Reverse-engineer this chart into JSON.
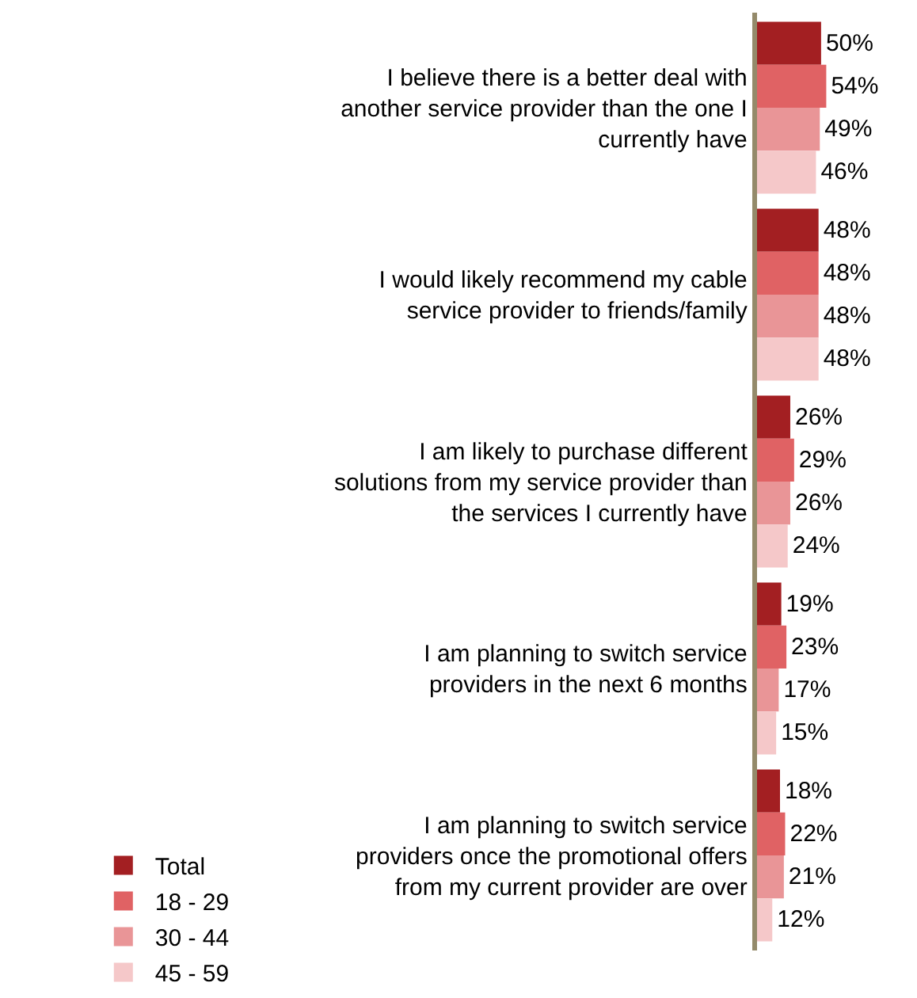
{
  "chart_data": {
    "type": "bar",
    "orientation": "horizontal",
    "categories": [
      "I believe there is a better deal with another service provider than the one I currently have",
      "I would likely recommend my cable service provider to friends/family",
      "I am likely to purchase different solutions from my service provider than the services I currently have",
      "I am planning to switch service providers in the next 6 months",
      "I am planning to switch service providers once the promotional offers from my current provider are over"
    ],
    "series": [
      {
        "name": "Total",
        "color": "#a31f22",
        "values": [
          50,
          48,
          26,
          19,
          18
        ],
        "value_labels": [
          "50%",
          "48%",
          "26%",
          "19%",
          "18%"
        ]
      },
      {
        "name": "18 - 29",
        "color": "#e06264",
        "values": [
          54,
          48,
          29,
          23,
          22
        ],
        "value_labels": [
          "54%",
          "48%",
          "29%",
          "23%",
          "22%"
        ]
      },
      {
        "name": "30 - 44",
        "color": "#e99597",
        "values": [
          49,
          48,
          26,
          17,
          21
        ],
        "value_labels": [
          "49%",
          "48%",
          "26%",
          "17%",
          "21%"
        ]
      },
      {
        "name": "45 - 59",
        "color": "#f5c8c9",
        "values": [
          46,
          48,
          24,
          15,
          12
        ],
        "value_labels": [
          "46%",
          "48%",
          "24%",
          "15%",
          "12%"
        ]
      }
    ],
    "legend": "bottom",
    "tick_labels": "y"
  }
}
